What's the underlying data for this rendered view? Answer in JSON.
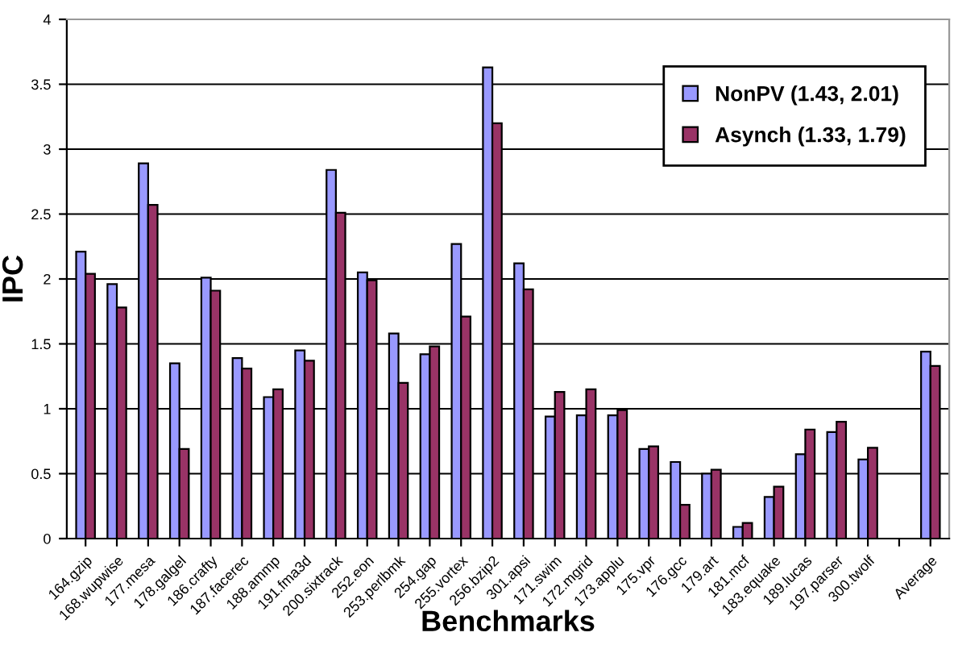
{
  "chart_data": {
    "type": "bar",
    "xlabel": "Benchmarks",
    "ylabel": "IPC",
    "categories": [
      "164.gzip",
      "168.wupwise",
      "177.mesa",
      "178.galgel",
      "186.crafty",
      "187.facerec",
      "188.ammp",
      "191.fma3d",
      "200.sixtrack",
      "252.eon",
      "253.perlbmk",
      "254.gap",
      "255.vortex",
      "256.bzip2",
      "301.apsi",
      "171.swim",
      "172.mgrid",
      "173.applu",
      "175.vpr",
      "176.gcc",
      "179.art",
      "181.mcf",
      "183.equake",
      "189.lucas",
      "197.parser",
      "300.twolf",
      null,
      "Average"
    ],
    "series": [
      {
        "name": "NonPV (1.43, 2.01)",
        "color": "#9999ff",
        "values": [
          2.21,
          1.96,
          2.89,
          1.35,
          2.01,
          1.39,
          1.09,
          1.45,
          2.84,
          2.05,
          1.58,
          1.42,
          2.27,
          3.63,
          2.12,
          0.94,
          0.95,
          0.95,
          0.69,
          0.59,
          0.5,
          0.09,
          0.32,
          0.65,
          0.82,
          0.61,
          null,
          1.44
        ]
      },
      {
        "name": "Asynch (1.33, 1.79)",
        "color": "#993366",
        "values": [
          2.04,
          1.78,
          2.57,
          0.69,
          1.91,
          1.31,
          1.15,
          1.37,
          2.51,
          1.99,
          1.2,
          1.48,
          1.71,
          3.2,
          1.92,
          1.13,
          1.15,
          0.99,
          0.71,
          0.26,
          0.53,
          0.12,
          0.4,
          0.84,
          0.9,
          0.7,
          null,
          1.33
        ]
      }
    ],
    "ylim": [
      0,
      4
    ],
    "yticks": [
      0,
      0.5,
      1,
      1.5,
      2,
      2.5,
      3,
      3.5,
      4
    ],
    "grid": "y",
    "legend": "top right"
  }
}
